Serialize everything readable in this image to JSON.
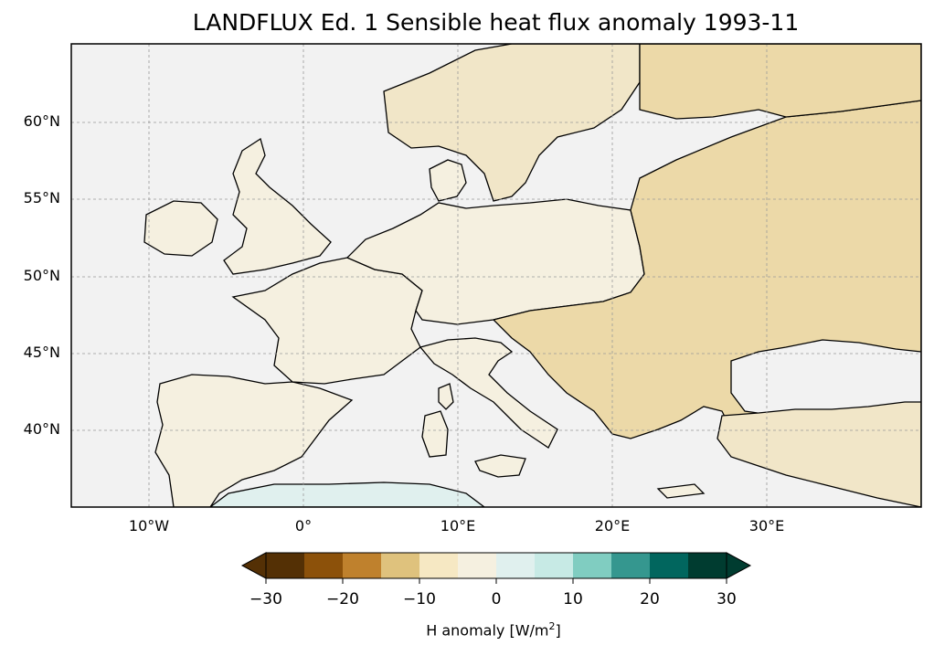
{
  "title": "LANDFLUX Ed. 1 Sensible heat flux anomaly 1993-11",
  "map": {
    "extent": {
      "lon": [
        -15,
        40
      ],
      "lat": [
        35,
        65
      ]
    },
    "lat_ticks": [
      {
        "value": 60,
        "label": "60°N"
      },
      {
        "value": 55,
        "label": "55°N"
      },
      {
        "value": 50,
        "label": "50°N"
      },
      {
        "value": 45,
        "label": "45°N"
      },
      {
        "value": 40,
        "label": "40°N"
      }
    ],
    "lon_ticks": [
      {
        "value": -10,
        "label": "10°W"
      },
      {
        "value": 0,
        "label": "0°"
      },
      {
        "value": 10,
        "label": "10°E"
      },
      {
        "value": 20,
        "label": "20°E"
      },
      {
        "value": 30,
        "label": "30°E"
      }
    ],
    "ocean_color": "#f2f2f2",
    "border_color": "#000000",
    "gridlines": true
  },
  "colorbar": {
    "levels": [
      -30,
      -25,
      -20,
      -15,
      -10,
      -5,
      0,
      5,
      10,
      15,
      20,
      25,
      30
    ],
    "colors": [
      "#543005",
      "#8c510a",
      "#bf812d",
      "#dfc27d",
      "#f6e8c3",
      "#f5f0e0",
      "#e0f0ee",
      "#c7eae5",
      "#80cdc1",
      "#35978f",
      "#01665e",
      "#003c30"
    ],
    "under_color": "#543005",
    "over_color": "#003c30",
    "tick_labels": [
      "−30",
      "−20",
      "−10",
      "0",
      "10",
      "20",
      "30"
    ],
    "tick_values": [
      -30,
      -20,
      -10,
      0,
      10,
      20,
      30
    ],
    "label_main": "H anomaly [W/m",
    "label_sup": "2",
    "label_end": "]"
  }
}
